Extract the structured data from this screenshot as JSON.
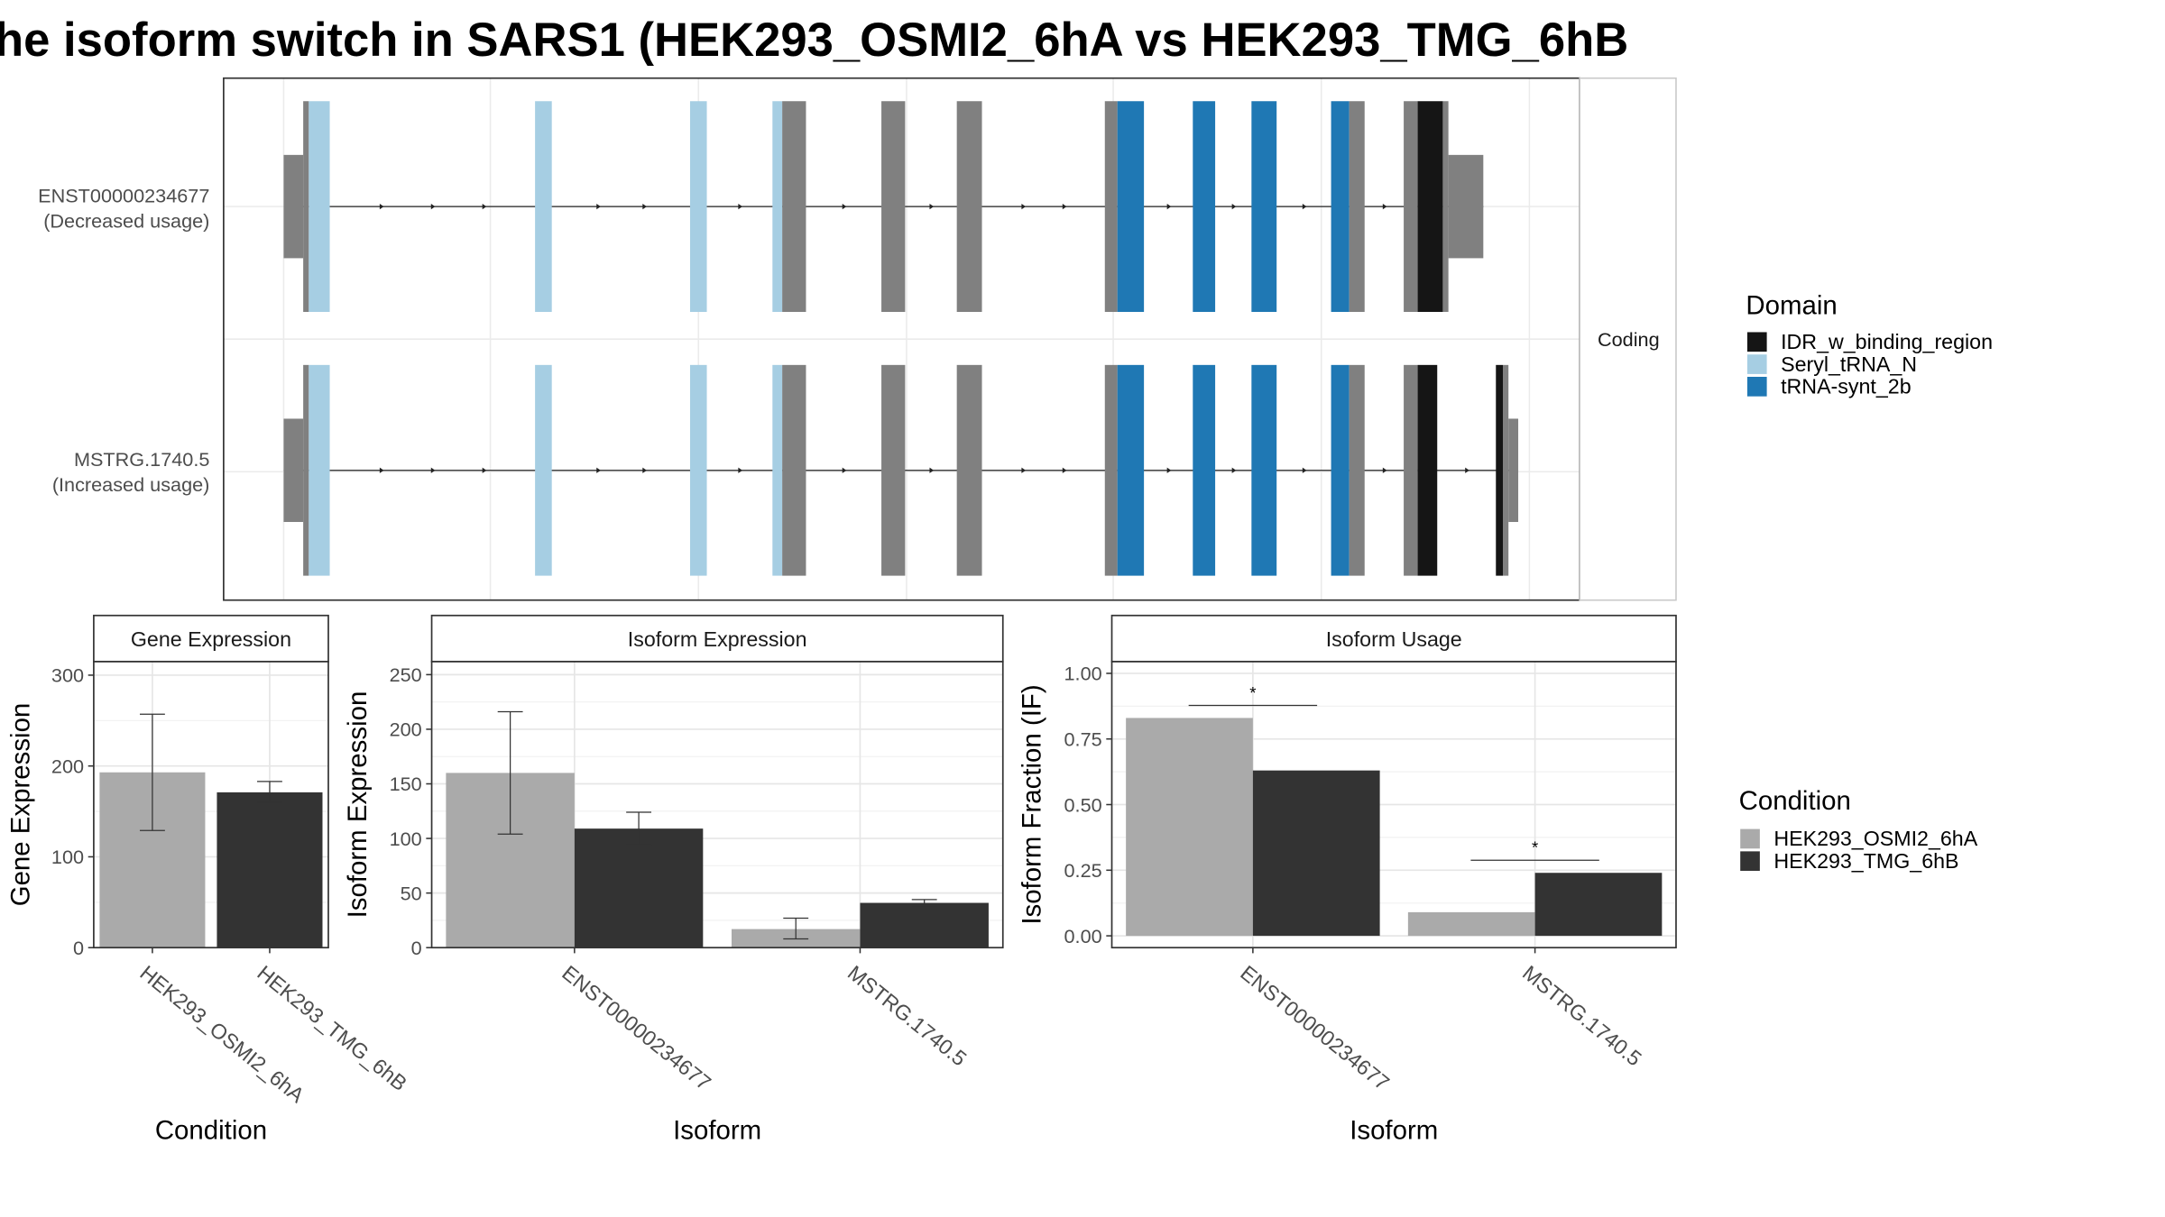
{
  "title": "he isoform switch in SARS1 (HEK293_OSMI2_6hA vs HEK293_TMG_6hB",
  "colors": {
    "utr": "#808080",
    "IDR_w_binding_region": "#151515",
    "Seryl_tRNA_N": "#a6cee3",
    "tRNA-synt_2b": "#1f78b4",
    "HEK293_OSMI2_6hA": "#aaaaaa",
    "HEK293_TMG_6hB": "#333333"
  },
  "structure": {
    "strip_label": "Coding",
    "transcripts": [
      {
        "id": "ENST00000234677",
        "usage": "(Decreased usage)",
        "exons": [
          {
            "type": "utr",
            "from": 203,
            "to": 217,
            "h": "small"
          },
          {
            "type": "utr",
            "from": 217,
            "to": 221,
            "h": "big"
          },
          {
            "type": "Seryl_tRNA_N",
            "from": 221,
            "to": 236,
            "h": "big"
          },
          {
            "type": "Seryl_tRNA_N",
            "from": 383,
            "to": 395,
            "h": "big"
          },
          {
            "type": "Seryl_tRNA_N",
            "from": 494,
            "to": 506,
            "h": "big"
          },
          {
            "type": "Seryl_tRNA_N",
            "from": 553,
            "to": 560,
            "h": "big"
          },
          {
            "type": "utr",
            "from": 560,
            "to": 577,
            "h": "big"
          },
          {
            "type": "utr",
            "from": 631,
            "to": 648,
            "h": "big"
          },
          {
            "type": "utr",
            "from": 685,
            "to": 703,
            "h": "big"
          },
          {
            "type": "utr",
            "from": 791,
            "to": 800,
            "h": "big"
          },
          {
            "type": "tRNA-synt_2b",
            "from": 800,
            "to": 819,
            "h": "big"
          },
          {
            "type": "tRNA-synt_2b",
            "from": 854,
            "to": 870,
            "h": "big"
          },
          {
            "type": "tRNA-synt_2b",
            "from": 896,
            "to": 914,
            "h": "big"
          },
          {
            "type": "tRNA-synt_2b",
            "from": 953,
            "to": 966,
            "h": "big"
          },
          {
            "type": "utr",
            "from": 966,
            "to": 977,
            "h": "big"
          },
          {
            "type": "utr",
            "from": 1005,
            "to": 1015,
            "h": "big"
          },
          {
            "type": "IDR_w_binding_region",
            "from": 1015,
            "to": 1033,
            "h": "big"
          },
          {
            "type": "utr",
            "from": 1033,
            "to": 1037,
            "h": "big"
          },
          {
            "type": "utr",
            "from": 1037,
            "to": 1062,
            "h": "small"
          }
        ]
      },
      {
        "id": "MSTRG.1740.5",
        "usage": "(Increased usage)",
        "exons": [
          {
            "type": "utr",
            "from": 203,
            "to": 217,
            "h": "small"
          },
          {
            "type": "utr",
            "from": 217,
            "to": 221,
            "h": "big"
          },
          {
            "type": "Seryl_tRNA_N",
            "from": 221,
            "to": 236,
            "h": "big"
          },
          {
            "type": "Seryl_tRNA_N",
            "from": 383,
            "to": 395,
            "h": "big"
          },
          {
            "type": "Seryl_tRNA_N",
            "from": 494,
            "to": 506,
            "h": "big"
          },
          {
            "type": "Seryl_tRNA_N",
            "from": 553,
            "to": 560,
            "h": "big"
          },
          {
            "type": "utr",
            "from": 560,
            "to": 577,
            "h": "big"
          },
          {
            "type": "utr",
            "from": 631,
            "to": 648,
            "h": "big"
          },
          {
            "type": "utr",
            "from": 685,
            "to": 703,
            "h": "big"
          },
          {
            "type": "utr",
            "from": 791,
            "to": 800,
            "h": "big"
          },
          {
            "type": "tRNA-synt_2b",
            "from": 800,
            "to": 819,
            "h": "big"
          },
          {
            "type": "tRNA-synt_2b",
            "from": 854,
            "to": 870,
            "h": "big"
          },
          {
            "type": "tRNA-synt_2b",
            "from": 896,
            "to": 914,
            "h": "big"
          },
          {
            "type": "tRNA-synt_2b",
            "from": 953,
            "to": 966,
            "h": "big"
          },
          {
            "type": "utr",
            "from": 966,
            "to": 977,
            "h": "big"
          },
          {
            "type": "utr",
            "from": 1005,
            "to": 1015,
            "h": "big"
          },
          {
            "type": "IDR_w_binding_region",
            "from": 1015,
            "to": 1029,
            "h": "big"
          },
          {
            "type": "IDR_w_binding_region",
            "from": 1071,
            "to": 1076,
            "h": "big"
          },
          {
            "type": "utr",
            "from": 1076,
            "to": 1080,
            "h": "big"
          },
          {
            "type": "utr",
            "from": 1080,
            "to": 1087,
            "h": "small"
          }
        ]
      }
    ]
  },
  "legend_domain": {
    "title": "Domain",
    "items": [
      "IDR_w_binding_region",
      "Seryl_tRNA_N",
      "tRNA-synt_2b"
    ]
  },
  "legend_condition": {
    "title": "Condition",
    "items": [
      "HEK293_OSMI2_6hA",
      "HEK293_TMG_6hB"
    ]
  },
  "chart_data": [
    {
      "type": "bar",
      "title": "Gene Expression",
      "xlabel": "Condition",
      "ylabel": "Gene Expression",
      "categories": [
        "HEK293_OSMI2_6hA",
        "HEK293_TMG_6hB"
      ],
      "values": [
        193,
        171
      ],
      "error_low": [
        129,
        160
      ],
      "error_high": [
        257,
        183
      ],
      "ylim": [
        0,
        315
      ],
      "yticks": [
        0,
        100,
        200,
        300
      ],
      "ytick_labels": [
        "0",
        "100",
        "200",
        "300"
      ]
    },
    {
      "type": "bar",
      "title": "Isoform Expression",
      "xlabel": "Isoform",
      "ylabel": "Isoform Expression",
      "categories": [
        "ENST00000234677",
        "MSTRG.1740.5"
      ],
      "series": [
        {
          "name": "HEK293_OSMI2_6hA",
          "values": [
            160,
            17
          ],
          "error_low": [
            104,
            8
          ],
          "error_high": [
            216,
            27
          ]
        },
        {
          "name": "HEK293_TMG_6hB",
          "values": [
            109,
            41
          ],
          "error_low": [
            94,
            38
          ],
          "error_high": [
            124,
            44
          ]
        }
      ],
      "ylim": [
        0,
        262
      ],
      "yticks": [
        0,
        50,
        100,
        150,
        200,
        250
      ],
      "ytick_labels": [
        "0",
        "50",
        "100",
        "150",
        "200",
        "250"
      ]
    },
    {
      "type": "bar",
      "title": "Isoform Usage",
      "xlabel": "Isoform",
      "ylabel": "Isoform Fraction (IF)",
      "categories": [
        "ENST00000234677",
        "MSTRG.1740.5"
      ],
      "series": [
        {
          "name": "HEK293_OSMI2_6hA",
          "values": [
            0.83,
            0.09
          ]
        },
        {
          "name": "HEK293_TMG_6hB",
          "values": [
            0.63,
            0.24
          ]
        }
      ],
      "significance": [
        "*",
        "*"
      ],
      "ylim": [
        -0.045,
        1.045
      ],
      "yticks": [
        0,
        0.25,
        0.5,
        0.75,
        1.0
      ],
      "ytick_labels": [
        "0.00",
        "0.25",
        "0.50",
        "0.75",
        "1.00"
      ]
    }
  ]
}
